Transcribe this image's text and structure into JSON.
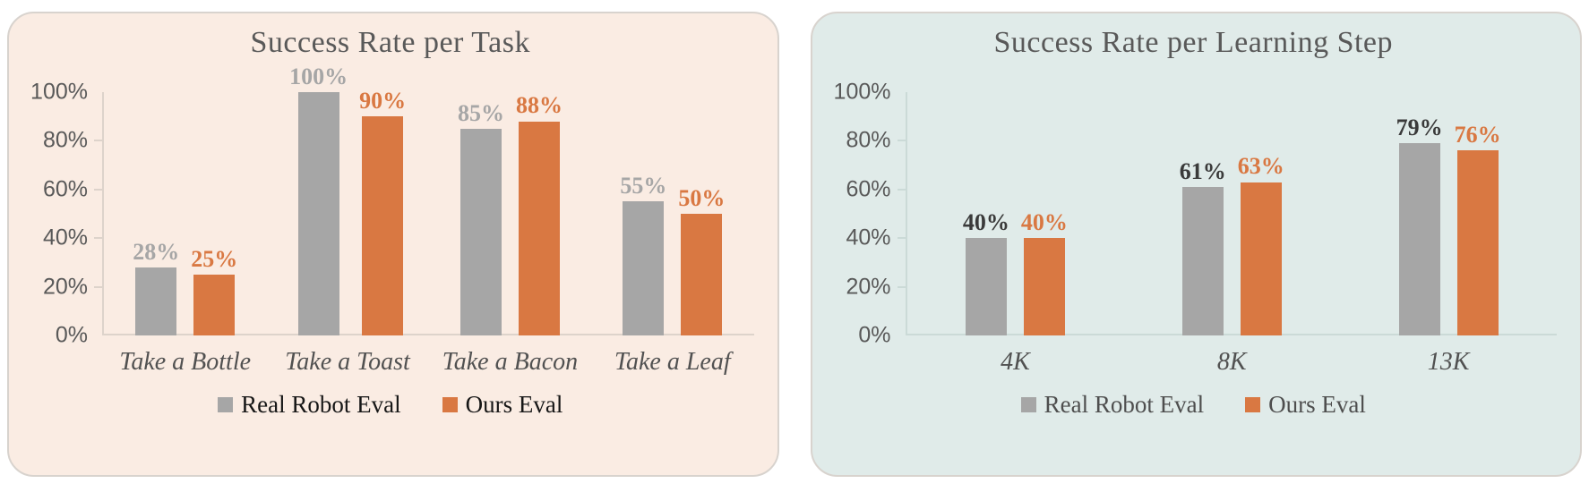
{
  "style": {
    "series_colors": {
      "gray": "#a6a6a6",
      "orange": "#d97842"
    },
    "title_color": "#595959",
    "y_tick_color": "#595959",
    "x_label_color": "#515151"
  },
  "chart_data": [
    {
      "type": "bar",
      "title": "Success Rate per Task",
      "card_bg": "#faece3",
      "axis_color": "#ddd3cb",
      "categories": [
        "Take a Bottle",
        "Take a Toast",
        "Take a Bacon",
        "Take a Leaf"
      ],
      "series": [
        {
          "name": "Real Robot Eval",
          "color": "gray",
          "values": [
            28,
            100,
            85,
            55
          ],
          "label_color": "#a6a6a6"
        },
        {
          "name": "Ours Eval",
          "color": "orange",
          "values": [
            25,
            90,
            88,
            50
          ],
          "label_color": "#d97842"
        }
      ],
      "value_suffix": "%",
      "y_ticks": [
        100,
        80,
        60,
        40,
        20,
        0
      ],
      "y_tick_suffix": "%",
      "ylim": [
        0,
        100
      ],
      "grid": false,
      "legend_position": "bottom",
      "legend_text_color": "#161616"
    },
    {
      "type": "bar",
      "title": "Success Rate per Learning Step",
      "card_bg": "#e0ebe9",
      "axis_color": "#cbdad7",
      "categories": [
        "4K",
        "8K",
        "13K"
      ],
      "series": [
        {
          "name": "Real Robot Eval",
          "color": "gray",
          "values": [
            40,
            61,
            79
          ],
          "label_color": "#3a3a3a"
        },
        {
          "name": "Ours Eval",
          "color": "orange",
          "values": [
            40,
            63,
            76
          ],
          "label_color": "#d97842"
        }
      ],
      "value_suffix": "%",
      "y_ticks": [
        100,
        80,
        60,
        40,
        20,
        0
      ],
      "y_tick_suffix": "%",
      "ylim": [
        0,
        100
      ],
      "grid": false,
      "legend_position": "bottom",
      "legend_text_color": "#4e4e4e"
    }
  ]
}
